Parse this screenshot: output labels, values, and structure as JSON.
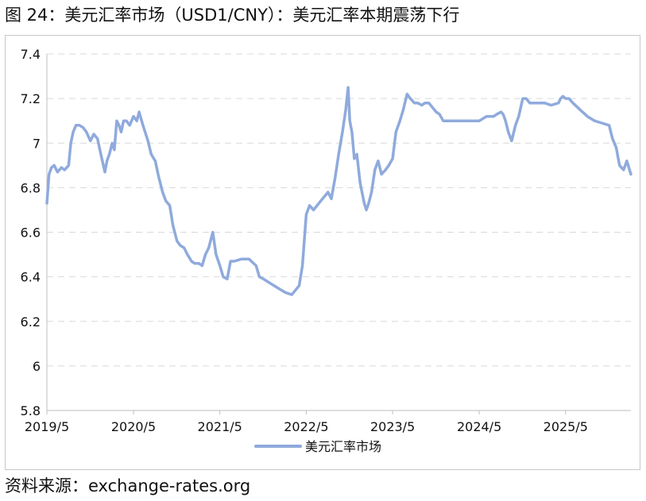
{
  "figure": {
    "title": "图 24：美元汇率市场（USD1/CNY）：美元汇率本期震荡下行",
    "source": "资料来源：exchange-rates.org"
  },
  "chart_data": {
    "type": "line",
    "title": "图 24：美元汇率市场（USD1/CNY）：美元汇率本期震荡下行",
    "xlabel": "",
    "ylabel": "",
    "ylim": [
      5.8,
      7.4
    ],
    "yticks": [
      "7.4",
      "7.2",
      "7",
      "6.8",
      "6.6",
      "6.4",
      "6.2",
      "6",
      "5.8"
    ],
    "ytick_values": [
      7.4,
      7.2,
      7.0,
      6.8,
      6.6,
      6.4,
      6.2,
      6.0,
      5.8
    ],
    "xlim": [
      "2019-05-01",
      "2026-02-01"
    ],
    "xticks": [
      "2019/5",
      "2020/5",
      "2021/5",
      "2022/5",
      "2023/5",
      "2024/5",
      "2025/5"
    ],
    "xtick_dates": [
      "2019-05-01",
      "2020-05-01",
      "2021-05-01",
      "2022-05-01",
      "2023-05-01",
      "2024-05-01",
      "2025-05-01"
    ],
    "grid": "horizontal dashed",
    "legend_position": "bottom-center",
    "series": [
      {
        "name": "美元汇率市场",
        "color": "#8FAADC",
        "x": [
          "2019-05-01",
          "2019-05-10",
          "2019-05-20",
          "2019-06-01",
          "2019-06-15",
          "2019-07-01",
          "2019-07-15",
          "2019-08-01",
          "2019-08-10",
          "2019-08-20",
          "2019-09-01",
          "2019-09-15",
          "2019-10-01",
          "2019-10-15",
          "2019-11-01",
          "2019-11-15",
          "2019-12-01",
          "2019-12-15",
          "2020-01-01",
          "2020-01-10",
          "2020-01-20",
          "2020-02-01",
          "2020-02-10",
          "2020-02-20",
          "2020-03-01",
          "2020-03-10",
          "2020-03-20",
          "2020-04-01",
          "2020-04-15",
          "2020-05-01",
          "2020-05-15",
          "2020-05-25",
          "2020-06-10",
          "2020-07-01",
          "2020-07-15",
          "2020-08-01",
          "2020-08-15",
          "2020-09-01",
          "2020-09-15",
          "2020-10-01",
          "2020-10-15",
          "2020-11-01",
          "2020-11-15",
          "2020-12-01",
          "2020-12-15",
          "2021-01-01",
          "2021-01-15",
          "2021-02-01",
          "2021-02-15",
          "2021-03-01",
          "2021-03-15",
          "2021-04-01",
          "2021-04-15",
          "2021-05-01",
          "2021-05-15",
          "2021-06-01",
          "2021-06-15",
          "2021-07-01",
          "2021-08-01",
          "2021-09-01",
          "2021-10-01",
          "2021-10-15",
          "2021-11-01",
          "2021-12-01",
          "2022-01-01",
          "2022-02-01",
          "2022-03-01",
          "2022-04-01",
          "2022-04-15",
          "2022-05-01",
          "2022-05-15",
          "2022-06-01",
          "2022-07-01",
          "2022-08-01",
          "2022-08-15",
          "2022-09-01",
          "2022-09-15",
          "2022-10-01",
          "2022-10-15",
          "2022-10-25",
          "2022-11-01",
          "2022-11-10",
          "2022-11-20",
          "2022-12-01",
          "2022-12-15",
          "2023-01-01",
          "2023-01-10",
          "2023-01-20",
          "2023-02-01",
          "2023-02-15",
          "2023-03-01",
          "2023-03-15",
          "2023-04-01",
          "2023-04-15",
          "2023-05-01",
          "2023-05-15",
          "2023-06-01",
          "2023-06-15",
          "2023-07-01",
          "2023-07-15",
          "2023-08-01",
          "2023-08-15",
          "2023-09-01",
          "2023-09-15",
          "2023-10-01",
          "2023-11-01",
          "2023-11-15",
          "2023-12-01",
          "2023-12-15",
          "2024-01-01",
          "2024-02-01",
          "2024-03-01",
          "2024-04-01",
          "2024-05-01",
          "2024-06-01",
          "2024-07-01",
          "2024-07-15",
          "2024-08-01",
          "2024-08-10",
          "2024-08-20",
          "2024-09-01",
          "2024-09-15",
          "2024-10-01",
          "2024-10-15",
          "2024-11-01",
          "2024-11-15",
          "2024-12-01",
          "2025-01-01",
          "2025-02-01",
          "2025-03-01",
          "2025-04-01",
          "2025-04-10",
          "2025-04-20",
          "2025-05-01",
          "2025-05-15",
          "2025-06-01",
          "2025-07-01",
          "2025-08-01",
          "2025-09-01",
          "2025-10-01",
          "2025-11-01",
          "2025-11-15",
          "2025-12-01",
          "2025-12-15",
          "2026-01-01",
          "2026-01-15",
          "2026-02-01"
        ],
        "y": [
          6.73,
          6.86,
          6.89,
          6.9,
          6.87,
          6.89,
          6.88,
          6.9,
          7.0,
          7.05,
          7.08,
          7.08,
          7.07,
          7.05,
          7.01,
          7.04,
          7.02,
          6.95,
          6.87,
          6.92,
          6.95,
          7.0,
          6.97,
          7.1,
          7.08,
          7.05,
          7.1,
          7.1,
          7.08,
          7.12,
          7.1,
          7.14,
          7.08,
          7.01,
          6.95,
          6.92,
          6.85,
          6.78,
          6.74,
          6.72,
          6.63,
          6.56,
          6.54,
          6.53,
          6.5,
          6.47,
          6.46,
          6.46,
          6.45,
          6.5,
          6.53,
          6.6,
          6.5,
          6.45,
          6.4,
          6.39,
          6.47,
          6.47,
          6.48,
          6.48,
          6.45,
          6.4,
          6.39,
          6.37,
          6.35,
          6.33,
          6.32,
          6.36,
          6.45,
          6.68,
          6.72,
          6.7,
          6.74,
          6.78,
          6.75,
          6.85,
          6.95,
          7.05,
          7.15,
          7.25,
          7.1,
          7.05,
          6.93,
          6.95,
          6.82,
          6.73,
          6.7,
          6.73,
          6.78,
          6.88,
          6.92,
          6.86,
          6.88,
          6.9,
          6.93,
          7.05,
          7.1,
          7.15,
          7.22,
          7.2,
          7.18,
          7.18,
          7.17,
          7.18,
          7.18,
          7.14,
          7.13,
          7.1,
          7.1,
          7.1,
          7.1,
          7.1,
          7.1,
          7.1,
          7.12,
          7.12,
          7.13,
          7.14,
          7.13,
          7.1,
          7.05,
          7.01,
          7.08,
          7.12,
          7.2,
          7.2,
          7.18,
          7.18,
          7.18,
          7.17,
          7.18,
          7.2,
          7.21,
          7.2,
          7.2,
          7.18,
          7.15,
          7.12,
          7.1,
          7.09,
          7.08,
          7.02,
          6.98,
          6.9,
          6.88,
          6.92,
          6.86
        ]
      }
    ]
  }
}
